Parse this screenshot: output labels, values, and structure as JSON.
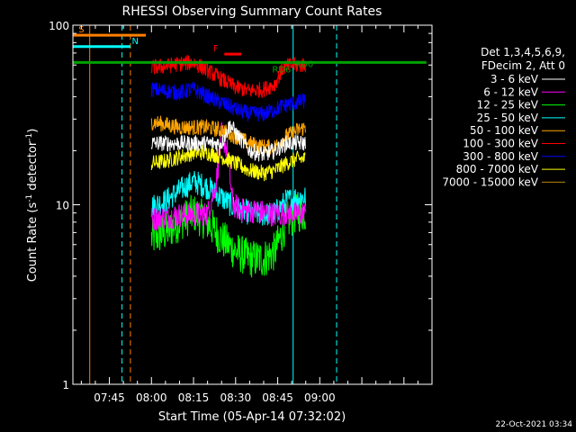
{
  "chart_data": {
    "type": "line",
    "title": "RHESSI Observing Summary Count Rates",
    "xlabel": "Start Time (05-Apr-14 07:32:02)",
    "ylabel_main": "Count Rate (s",
    "ylabel_exp": "-1",
    "ylabel_tail": " detector",
    "ylabel_close": ")",
    "y_scale": "log",
    "ylim": [
      1,
      100
    ],
    "xlim_minutes": [
      452,
      580
    ],
    "y_ticks": [
      {
        "v": 1,
        "label": "1"
      },
      {
        "v": 10,
        "label": "10"
      },
      {
        "v": 100,
        "label": "100"
      }
    ],
    "x_ticks": [
      {
        "t": 465,
        "label": "07:45"
      },
      {
        "t": 480,
        "label": "08:00"
      },
      {
        "t": 495,
        "label": "08:15"
      },
      {
        "t": 510,
        "label": "08:30"
      },
      {
        "t": 525,
        "label": "08:45"
      },
      {
        "t": 540,
        "label": "09:00"
      }
    ],
    "legend_title": [
      "Det 1,3,4,5,6,9,",
      "FDecim 2, Att 0"
    ],
    "series": [
      {
        "name": "3 - 6 keV",
        "color": "#ffffff",
        "key": [
          [
            480,
            22
          ],
          [
            490,
            22
          ],
          [
            500,
            22
          ],
          [
            505,
            22
          ],
          [
            508,
            28
          ],
          [
            511,
            24
          ],
          [
            515,
            20
          ],
          [
            520,
            19
          ],
          [
            524,
            20
          ],
          [
            528,
            22
          ],
          [
            532,
            22
          ],
          [
            535,
            22
          ]
        ]
      },
      {
        "name": "6 - 12 keV",
        "color": "#ff00ff",
        "key": [
          [
            480,
            8.3
          ],
          [
            490,
            8.8
          ],
          [
            500,
            8.9
          ],
          [
            503,
            13
          ],
          [
            505,
            25
          ],
          [
            507,
            20
          ],
          [
            509,
            10
          ],
          [
            512,
            9.3
          ],
          [
            518,
            9.2
          ],
          [
            524,
            8.8
          ],
          [
            528,
            9.0
          ],
          [
            532,
            8.8
          ],
          [
            535,
            9.0
          ]
        ]
      },
      {
        "name": "12 - 25 keV",
        "color": "#00ff00",
        "key": [
          [
            480,
            6.5
          ],
          [
            485,
            7.0
          ],
          [
            490,
            8.0
          ],
          [
            495,
            9.0
          ],
          [
            500,
            8.0
          ],
          [
            505,
            6.5
          ],
          [
            510,
            5.5
          ],
          [
            515,
            5.0
          ],
          [
            520,
            5.0
          ],
          [
            524,
            5.5
          ],
          [
            528,
            8.0
          ],
          [
            532,
            9.0
          ],
          [
            535,
            9.0
          ]
        ]
      },
      {
        "name": "25 - 50 keV",
        "color": "#00ffff",
        "key": [
          [
            480,
            9.8
          ],
          [
            485,
            10.5
          ],
          [
            490,
            12.0
          ],
          [
            495,
            13.5
          ],
          [
            500,
            12.5
          ],
          [
            505,
            11.0
          ],
          [
            510,
            9.5
          ],
          [
            515,
            9.0
          ],
          [
            520,
            8.8
          ],
          [
            524,
            9.0
          ],
          [
            528,
            10.5
          ],
          [
            532,
            11.0
          ],
          [
            535,
            11.0
          ]
        ]
      },
      {
        "name": "50 - 100 keV",
        "color": "#ffa500",
        "key": [
          [
            480,
            29
          ],
          [
            485,
            28
          ],
          [
            490,
            27
          ],
          [
            495,
            27
          ],
          [
            500,
            27
          ],
          [
            505,
            26
          ],
          [
            510,
            24
          ],
          [
            515,
            22
          ],
          [
            520,
            21
          ],
          [
            524,
            21
          ],
          [
            528,
            24
          ],
          [
            532,
            26
          ],
          [
            535,
            27
          ]
        ]
      },
      {
        "name": "100 - 300 keV",
        "color": "#ff0000",
        "key": [
          [
            480,
            58
          ],
          [
            485,
            59
          ],
          [
            490,
            61
          ],
          [
            495,
            62
          ],
          [
            500,
            56
          ],
          [
            505,
            50
          ],
          [
            510,
            45
          ],
          [
            515,
            43
          ],
          [
            520,
            44
          ],
          [
            524,
            47
          ],
          [
            527,
            58
          ],
          [
            530,
            60
          ],
          [
            535,
            60
          ]
        ]
      },
      {
        "name": "300 - 800 keV",
        "color": "#0000ff",
        "key": [
          [
            480,
            44
          ],
          [
            485,
            43
          ],
          [
            490,
            42
          ],
          [
            495,
            44
          ],
          [
            500,
            40
          ],
          [
            505,
            37
          ],
          [
            510,
            34
          ],
          [
            515,
            32
          ],
          [
            520,
            32
          ],
          [
            524,
            34
          ],
          [
            528,
            36
          ],
          [
            532,
            37
          ],
          [
            535,
            38
          ]
        ]
      },
      {
        "name": "800 - 7000 keV",
        "color": "#ffff00",
        "key": [
          [
            480,
            17
          ],
          [
            485,
            17.5
          ],
          [
            490,
            18.5
          ],
          [
            495,
            19.5
          ],
          [
            500,
            19.5
          ],
          [
            505,
            18.5
          ],
          [
            510,
            17
          ],
          [
            515,
            15.5
          ],
          [
            520,
            15
          ],
          [
            524,
            15.5
          ],
          [
            528,
            17
          ],
          [
            532,
            18
          ],
          [
            535,
            18
          ]
        ]
      },
      {
        "name": "7000 - 15000 keV",
        "color": "#b8860b",
        "key": []
      }
    ],
    "annotations": [
      {
        "label": "S",
        "color": "#ff8000",
        "t0": 452,
        "t1": 478,
        "y": 88,
        "label_t": 454
      },
      {
        "label": "N",
        "color": "#00ffff",
        "t0": 452,
        "t1": 472.5,
        "y": 76,
        "label_t": 473
      },
      {
        "label": "F",
        "color": "#ff0000",
        "t0": 506,
        "t1": 512,
        "y": 69,
        "label_t": 502
      },
      {
        "label": "RD6",
        "color": "#00a000",
        "t0": 452,
        "t1": 530,
        "y": 62,
        "label_t": 523
      },
      {
        "label": "RD0",
        "color": "#00a000",
        "t0": 530,
        "t1": 578,
        "y": 62,
        "label_t": 531
      }
    ],
    "vlines": [
      {
        "t": 458,
        "color": "#ff8000",
        "dashed": false
      },
      {
        "t": 469.5,
        "color": "#00ffff",
        "dashed": true
      },
      {
        "t": 472.5,
        "color": "#ff8000",
        "dashed": true
      },
      {
        "t": 530.5,
        "color": "#00ffff",
        "dashed": false
      },
      {
        "t": 546,
        "color": "#00ffff",
        "dashed": true
      }
    ],
    "footer_date": "22-Oct-2021 03:34"
  }
}
